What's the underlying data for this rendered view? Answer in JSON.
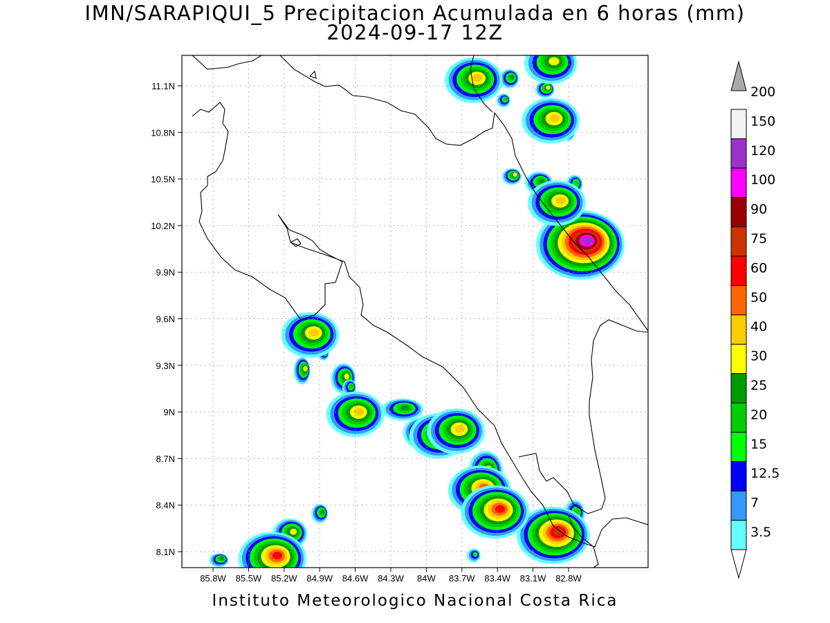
{
  "title": {
    "line1": "IMN/SARAPIQUI_5 Precipitacion Acumulada en 6 horas (mm)",
    "line2": "2024-09-17 12Z"
  },
  "credit": "Instituto Meteorologico Nacional Costa Rica",
  "map": {
    "lon_ticks": [
      "85.8W",
      "85.5W",
      "85.2W",
      "84.9W",
      "84.6W",
      "84.3W",
      "84W",
      "83.7W",
      "83.4W",
      "83.1W",
      "82.8W"
    ],
    "lat_ticks": [
      "11.1N",
      "10.8N",
      "10.5N",
      "10.2N",
      "9.9N",
      "9.6N",
      "9.3N",
      "9N",
      "8.7N",
      "8.4N",
      "8.1N"
    ],
    "grid": "dotted"
  },
  "chart_data": {
    "type": "heatmap",
    "variable": "Precipitacion Acumulada en 6 horas",
    "units": "mm",
    "colorbar": {
      "levels": [
        "3.5",
        "7",
        "12.5",
        "15",
        "20",
        "25",
        "30",
        "40",
        "50",
        "60",
        "75",
        "90",
        "100",
        "120",
        "150",
        "200"
      ],
      "colors": [
        "#66ffff",
        "#3399ff",
        "#0000ff",
        "#00ff00",
        "#00cc00",
        "#009900",
        "#ffff00",
        "#ffcc00",
        "#ff6600",
        "#ff0000",
        "#cc3300",
        "#990000",
        "#ff00ff",
        "#9933cc",
        "#f2f2f2",
        "#aaaaaa"
      ]
    },
    "rain_cells": [
      {
        "lon": -82.7,
        "lat": 10.08,
        "max_level": "120"
      },
      {
        "lon": -82.93,
        "lat": 8.21,
        "max_level": "75"
      },
      {
        "lon": -85.3,
        "lat": 8.06,
        "max_level": "60"
      },
      {
        "lon": -83.55,
        "lat": 8.5,
        "max_level": "50"
      },
      {
        "lon": -83.42,
        "lat": 8.36,
        "max_level": "60"
      },
      {
        "lon": -84.98,
        "lat": 9.5,
        "max_level": "40"
      },
      {
        "lon": -84.6,
        "lat": 8.99,
        "max_level": "40"
      },
      {
        "lon": -83.9,
        "lat": 8.85,
        "max_level": "40"
      },
      {
        "lon": -83.75,
        "lat": 8.88,
        "max_level": "40"
      },
      {
        "lon": -82.9,
        "lat": 10.35,
        "max_level": "40"
      },
      {
        "lon": -82.95,
        "lat": 10.88,
        "max_level": "40"
      },
      {
        "lon": -83.6,
        "lat": 11.14,
        "max_level": "40"
      },
      {
        "lon": -82.95,
        "lat": 11.25,
        "max_level": "30"
      }
    ]
  }
}
